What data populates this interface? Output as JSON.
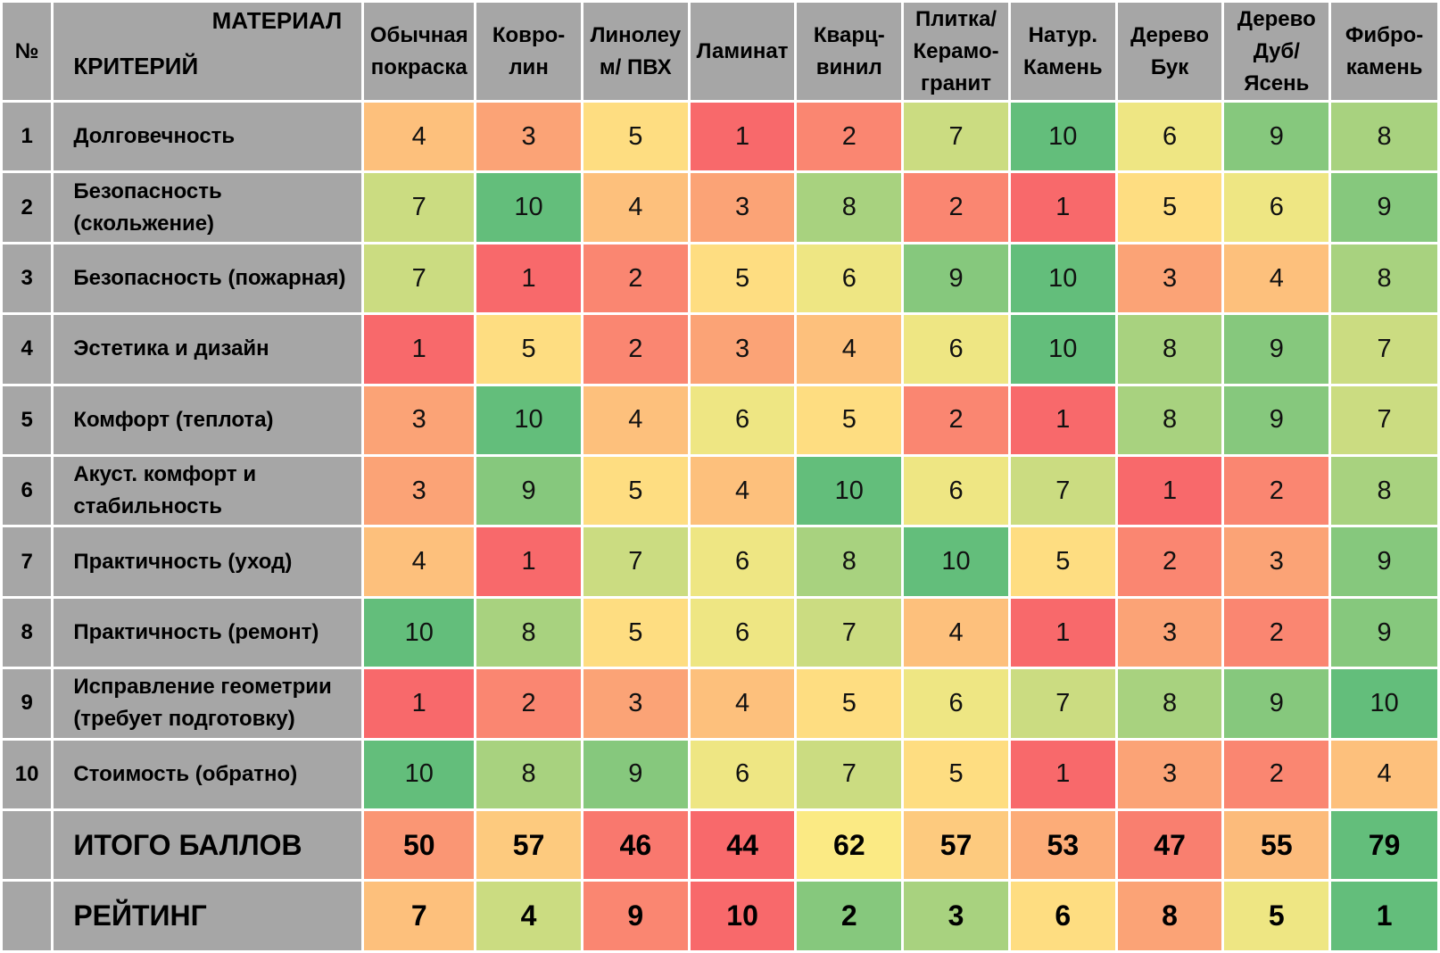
{
  "chart_data": {
    "type": "heatmap",
    "header": {
      "number_label": "№",
      "material_label": "МАТЕРИАЛ",
      "criterion_label": "КРИТЕРИЙ"
    },
    "materials": [
      "Обычная покраска",
      "Ковро-лин",
      "Линолеум/ ПВХ",
      "Ламинат",
      "Кварц-винил",
      "Плитка/ Керамо-гранит",
      "Натур. Камень",
      "Дерево Бук",
      "Дерево Дуб/ Ясень",
      "Фибро-камень"
    ],
    "material_headers": [
      [
        "Обычная",
        "покраска"
      ],
      [
        "Ковро-",
        "лин"
      ],
      [
        "Линолеу",
        "м/ ПВХ"
      ],
      [
        "Ламинат"
      ],
      [
        "Кварц-",
        "винил"
      ],
      [
        "Плитка/",
        "Керамо-",
        "гранит"
      ],
      [
        "Натур.",
        "Камень"
      ],
      [
        "Дерево",
        "Бук"
      ],
      [
        "Дерево",
        "Дуб/",
        "Ясень"
      ],
      [
        "Фибро-",
        "камень"
      ]
    ],
    "rows": [
      {
        "n": "1",
        "criterion": [
          "Долговечность"
        ],
        "values": [
          4,
          3,
          5,
          1,
          2,
          7,
          10,
          6,
          9,
          8
        ]
      },
      {
        "n": "2",
        "criterion": [
          "Безопасность",
          "(скольжение)"
        ],
        "values": [
          7,
          10,
          4,
          3,
          8,
          2,
          1,
          5,
          6,
          9
        ]
      },
      {
        "n": "3",
        "criterion": [
          "Безопасность (пожарная)"
        ],
        "values": [
          7,
          1,
          2,
          5,
          6,
          9,
          10,
          3,
          4,
          8
        ]
      },
      {
        "n": "4",
        "criterion": [
          "Эстетика и дизайн"
        ],
        "values": [
          1,
          5,
          2,
          3,
          4,
          6,
          10,
          8,
          9,
          7
        ]
      },
      {
        "n": "5",
        "criterion": [
          "Комфорт (теплота)"
        ],
        "values": [
          3,
          10,
          4,
          6,
          5,
          2,
          1,
          8,
          9,
          7
        ]
      },
      {
        "n": "6",
        "criterion": [
          "Акуст. комфорт и",
          "стабильность"
        ],
        "values": [
          3,
          9,
          5,
          4,
          10,
          6,
          7,
          1,
          2,
          8
        ]
      },
      {
        "n": "7",
        "criterion": [
          "Практичность (уход)"
        ],
        "values": [
          4,
          1,
          7,
          6,
          8,
          10,
          5,
          2,
          3,
          9
        ]
      },
      {
        "n": "8",
        "criterion": [
          "Практичность (ремонт)"
        ],
        "values": [
          10,
          8,
          5,
          6,
          7,
          4,
          1,
          3,
          2,
          9
        ]
      },
      {
        "n": "9",
        "criterion": [
          "Исправление геометрии",
          "(требует подготовку)"
        ],
        "values": [
          1,
          2,
          3,
          4,
          5,
          6,
          7,
          8,
          9,
          10
        ]
      },
      {
        "n": "10",
        "criterion": [
          "Стоимость (обратно)"
        ],
        "values": [
          10,
          8,
          9,
          6,
          7,
          5,
          1,
          3,
          2,
          4
        ]
      }
    ],
    "totals": {
      "label": "ИТОГО БАЛЛОВ",
      "values": [
        50,
        57,
        46,
        44,
        62,
        57,
        53,
        47,
        55,
        79
      ]
    },
    "rating": {
      "label": "РЕЙТИНГ",
      "values": [
        7,
        4,
        9,
        10,
        2,
        3,
        6,
        8,
        5,
        1
      ]
    },
    "color_scale": {
      "low": "#f8696b",
      "mid": "#ffeb84",
      "high": "#63be7b",
      "header": "#a6a6a6"
    }
  }
}
